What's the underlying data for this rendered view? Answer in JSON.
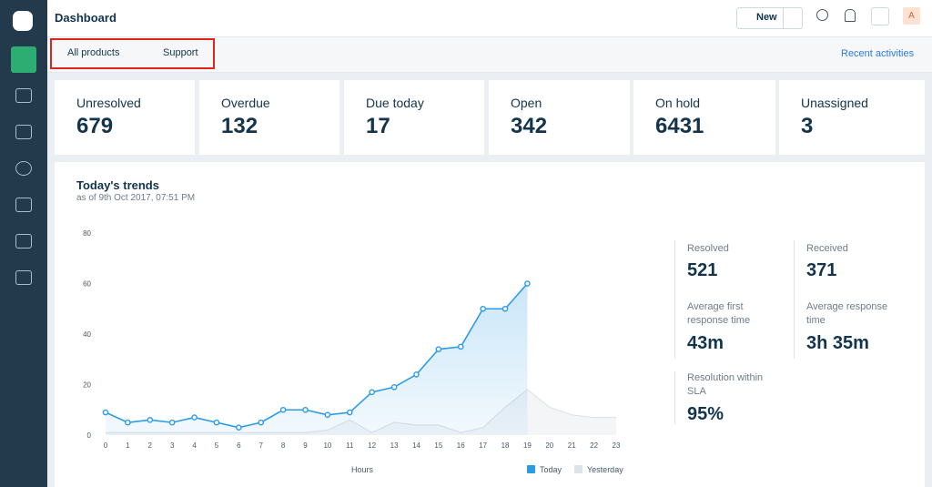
{
  "header": {
    "title": "Dashboard",
    "new_button": "New",
    "avatar": "A"
  },
  "filters": {
    "products": "All products",
    "group": "Support",
    "recent": "Recent activities"
  },
  "cards": [
    {
      "label": "Unresolved",
      "value": "679"
    },
    {
      "label": "Overdue",
      "value": "132"
    },
    {
      "label": "Due today",
      "value": "17"
    },
    {
      "label": "Open",
      "value": "342"
    },
    {
      "label": "On hold",
      "value": "6431"
    },
    {
      "label": "Unassigned",
      "value": "3"
    }
  ],
  "stats": [
    {
      "label": "Resolved",
      "value": "521"
    },
    {
      "label": "Received",
      "value": "371"
    },
    {
      "label": "Average first response time",
      "value": "43m"
    },
    {
      "label": "Average response time",
      "value": "3h 35m"
    },
    {
      "label": "Resolution within SLA",
      "value": "95%"
    }
  ],
  "chart_data": {
    "type": "line",
    "title": "Today's trends",
    "subtitle": "as of 9th Oct 2017, 07:51 PM",
    "x_label": "Hours",
    "x": [
      0,
      1,
      2,
      3,
      4,
      5,
      6,
      7,
      8,
      9,
      10,
      11,
      12,
      13,
      14,
      15,
      16,
      17,
      18,
      19,
      20,
      21,
      22,
      23
    ],
    "xlim": [
      0,
      23
    ],
    "ylim": [
      0,
      80
    ],
    "yticks": [
      0,
      20,
      40,
      60,
      80
    ],
    "series": [
      {
        "name": "Today",
        "color": "#2c9be6",
        "values": [
          9,
          5,
          6,
          5,
          7,
          5,
          3,
          5,
          10,
          10,
          8,
          9,
          17,
          19,
          24,
          34,
          35,
          50,
          50,
          60,
          null,
          null,
          null,
          null
        ]
      },
      {
        "name": "Yesterday",
        "color": "#dfe3e8",
        "values": [
          1,
          1,
          1,
          1,
          1,
          1,
          1,
          1,
          1,
          1,
          2,
          6,
          1,
          5,
          4,
          4,
          1,
          3,
          11,
          18,
          11,
          8,
          7,
          7
        ]
      }
    ]
  }
}
